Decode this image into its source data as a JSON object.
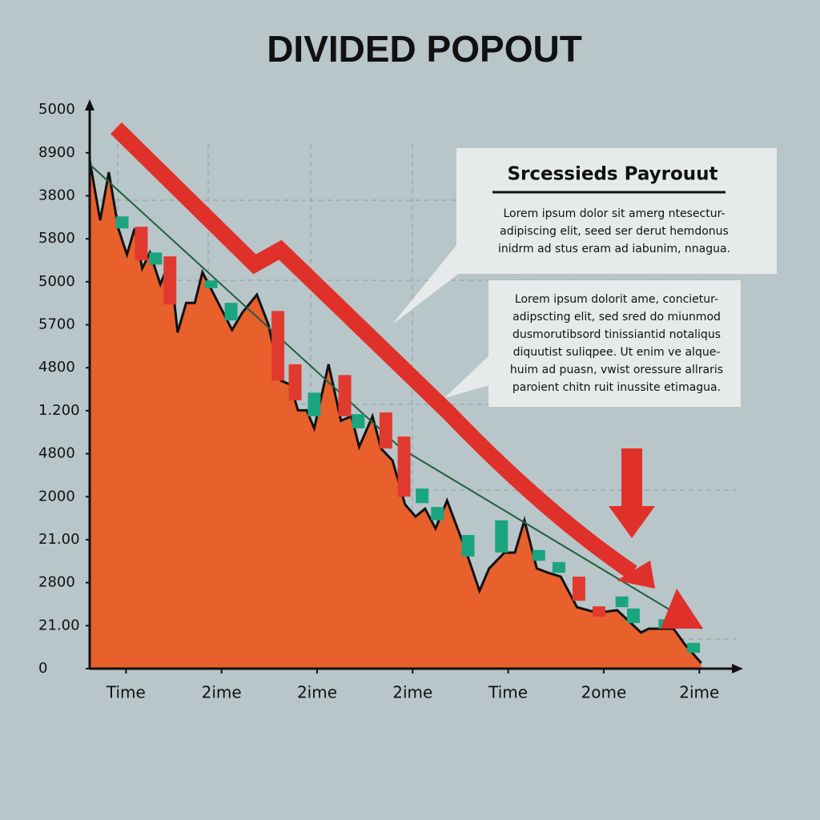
{
  "chart_data": {
    "type": "area",
    "title": "DIVIDED POPOUT",
    "xlim": [
      -0.38,
      6.4
    ],
    "xticks": [
      {
        "value": 0,
        "label": "Time"
      },
      {
        "value": 1,
        "label": "2ime"
      },
      {
        "value": 2,
        "label": "2ime"
      },
      {
        "value": 3,
        "label": "2ime"
      },
      {
        "value": 4,
        "label": "Time"
      },
      {
        "value": 5,
        "label": "2ome"
      },
      {
        "value": 6,
        "label": "2ime"
      }
    ],
    "ylim": [
      0,
      13.17
    ],
    "yticks": [
      0,
      {
        "value": 1,
        "label": "21.00"
      },
      {
        "value": 2,
        "label": "2800"
      },
      {
        "value": 3,
        "label": "21.00"
      },
      {
        "value": 4,
        "label": "2000"
      },
      {
        "value": 5,
        "label": "4800"
      },
      {
        "value": 6,
        "label": "1.200"
      },
      {
        "value": 7,
        "label": "4800"
      },
      {
        "value": 8,
        "label": "5700"
      },
      {
        "value": 9,
        "label": "5000"
      },
      {
        "value": 10,
        "label": "5800"
      },
      {
        "value": 11,
        "label": "3800"
      },
      {
        "value": 12,
        "label": "8900"
      },
      {
        "value": 13,
        "label": "5000"
      }
    ],
    "series": [
      {
        "color": "#e8602c",
        "line_color": "#111111",
        "x": [
          -0.38,
          -0.27,
          -0.18,
          -0.08,
          0.01,
          0.09,
          0.17,
          0.25,
          0.36,
          0.46,
          0.54,
          0.63,
          0.72,
          0.8,
          0.91,
          1.11,
          1.22,
          1.37,
          1.49,
          1.62,
          1.72,
          1.8,
          1.89,
          1.97,
          2.12,
          2.25,
          2.36,
          2.44,
          2.58,
          2.67,
          2.79,
          2.92,
          3.03,
          3.13,
          3.24,
          3.36,
          3.55,
          3.7,
          3.8,
          3.96,
          4.07,
          4.17,
          4.3,
          4.42,
          4.55,
          4.72,
          4.93,
          5.14,
          5.39,
          5.47,
          5.73,
          5.85,
          6.02
        ],
        "values": [
          11.83,
          10.43,
          11.55,
          10.24,
          9.63,
          10.24,
          9.31,
          9.68,
          8.94,
          9.5,
          7.82,
          8.51,
          8.51,
          9.22,
          8.75,
          7.88,
          8.29,
          8.7,
          8.01,
          6.7,
          6.61,
          6.01,
          6.01,
          5.59,
          7.08,
          5.77,
          5.87,
          5.16,
          5.87,
          5.12,
          4.84,
          3.82,
          3.54,
          3.72,
          3.26,
          3.91,
          2.79,
          1.81,
          2.33,
          2.7,
          2.7,
          3.45,
          2.33,
          2.23,
          2.14,
          1.43,
          1.3,
          1.36,
          0.84,
          0.93,
          0.93,
          0.56,
          0.13
        ]
      },
      {
        "color": "#1f5f3f",
        "trend": true,
        "x": [
          -0.38,
          2.88,
          6.02
        ],
        "values": [
          11.73,
          5.12,
          0.93
        ]
      }
    ],
    "candles": {
      "rising_color": "#1aa57f",
      "falling_color": "#e03a2f",
      "items": [
        {
          "x": -0.04,
          "open": 10.24,
          "close": 10.52
        },
        {
          "x": 0.16,
          "open": 10.28,
          "close": 9.5
        },
        {
          "x": 0.31,
          "open": 9.4,
          "close": 9.68
        },
        {
          "x": 0.46,
          "open": 9.59,
          "close": 8.47
        },
        {
          "x": 0.89,
          "open": 8.85,
          "close": 9.03
        },
        {
          "x": 1.1,
          "open": 8.1,
          "close": 8.51
        },
        {
          "x": 1.59,
          "open": 8.32,
          "close": 6.7
        },
        {
          "x": 1.77,
          "open": 7.08,
          "close": 6.24
        },
        {
          "x": 1.97,
          "open": 5.87,
          "close": 6.42
        },
        {
          "x": 2.29,
          "open": 6.83,
          "close": 5.87
        },
        {
          "x": 2.43,
          "open": 5.59,
          "close": 5.92
        },
        {
          "x": 2.72,
          "open": 5.96,
          "close": 5.12
        },
        {
          "x": 2.91,
          "open": 5.4,
          "close": 4.0
        },
        {
          "x": 3.1,
          "open": 3.85,
          "close": 4.19
        },
        {
          "x": 3.26,
          "open": 3.45,
          "close": 3.76
        },
        {
          "x": 3.58,
          "open": 2.61,
          "close": 3.11
        },
        {
          "x": 3.93,
          "open": 2.7,
          "close": 3.45
        },
        {
          "x": 4.32,
          "open": 2.51,
          "close": 2.76
        },
        {
          "x": 4.53,
          "open": 2.23,
          "close": 2.48
        },
        {
          "x": 4.74,
          "open": 2.14,
          "close": 1.58
        },
        {
          "x": 4.95,
          "open": 1.45,
          "close": 1.21
        },
        {
          "x": 5.19,
          "open": 1.43,
          "close": 1.68
        },
        {
          "x": 5.31,
          "open": 1.06,
          "close": 1.4
        },
        {
          "x": 5.64,
          "open": 0.93,
          "close": 1.15
        },
        {
          "x": 5.94,
          "open": 0.37,
          "close": 0.6
        }
      ]
    },
    "callouts": [
      {
        "title": "Srcessieds Payrouut",
        "lines": [
          "Lorem ipsum dolor  sit amerg ntesectur-",
          "adipiscing  elit,  seed ser derut hemdonus",
          "inidrm ad stus eram ad iabunim, nnagua."
        ]
      },
      {
        "lines": [
          "Lorem ipsum dolorit ame, concietur-",
          "adipscting elit, sed sred do miunmod",
          "dusmorutibsord tinissiantid notaliqus",
          "diquutist suliqpee. Ut enim ve alque-",
          "huim ad puasn, vwist oressure allraris",
          "paroient chitn ruit inussite etimagua."
        ]
      }
    ]
  }
}
